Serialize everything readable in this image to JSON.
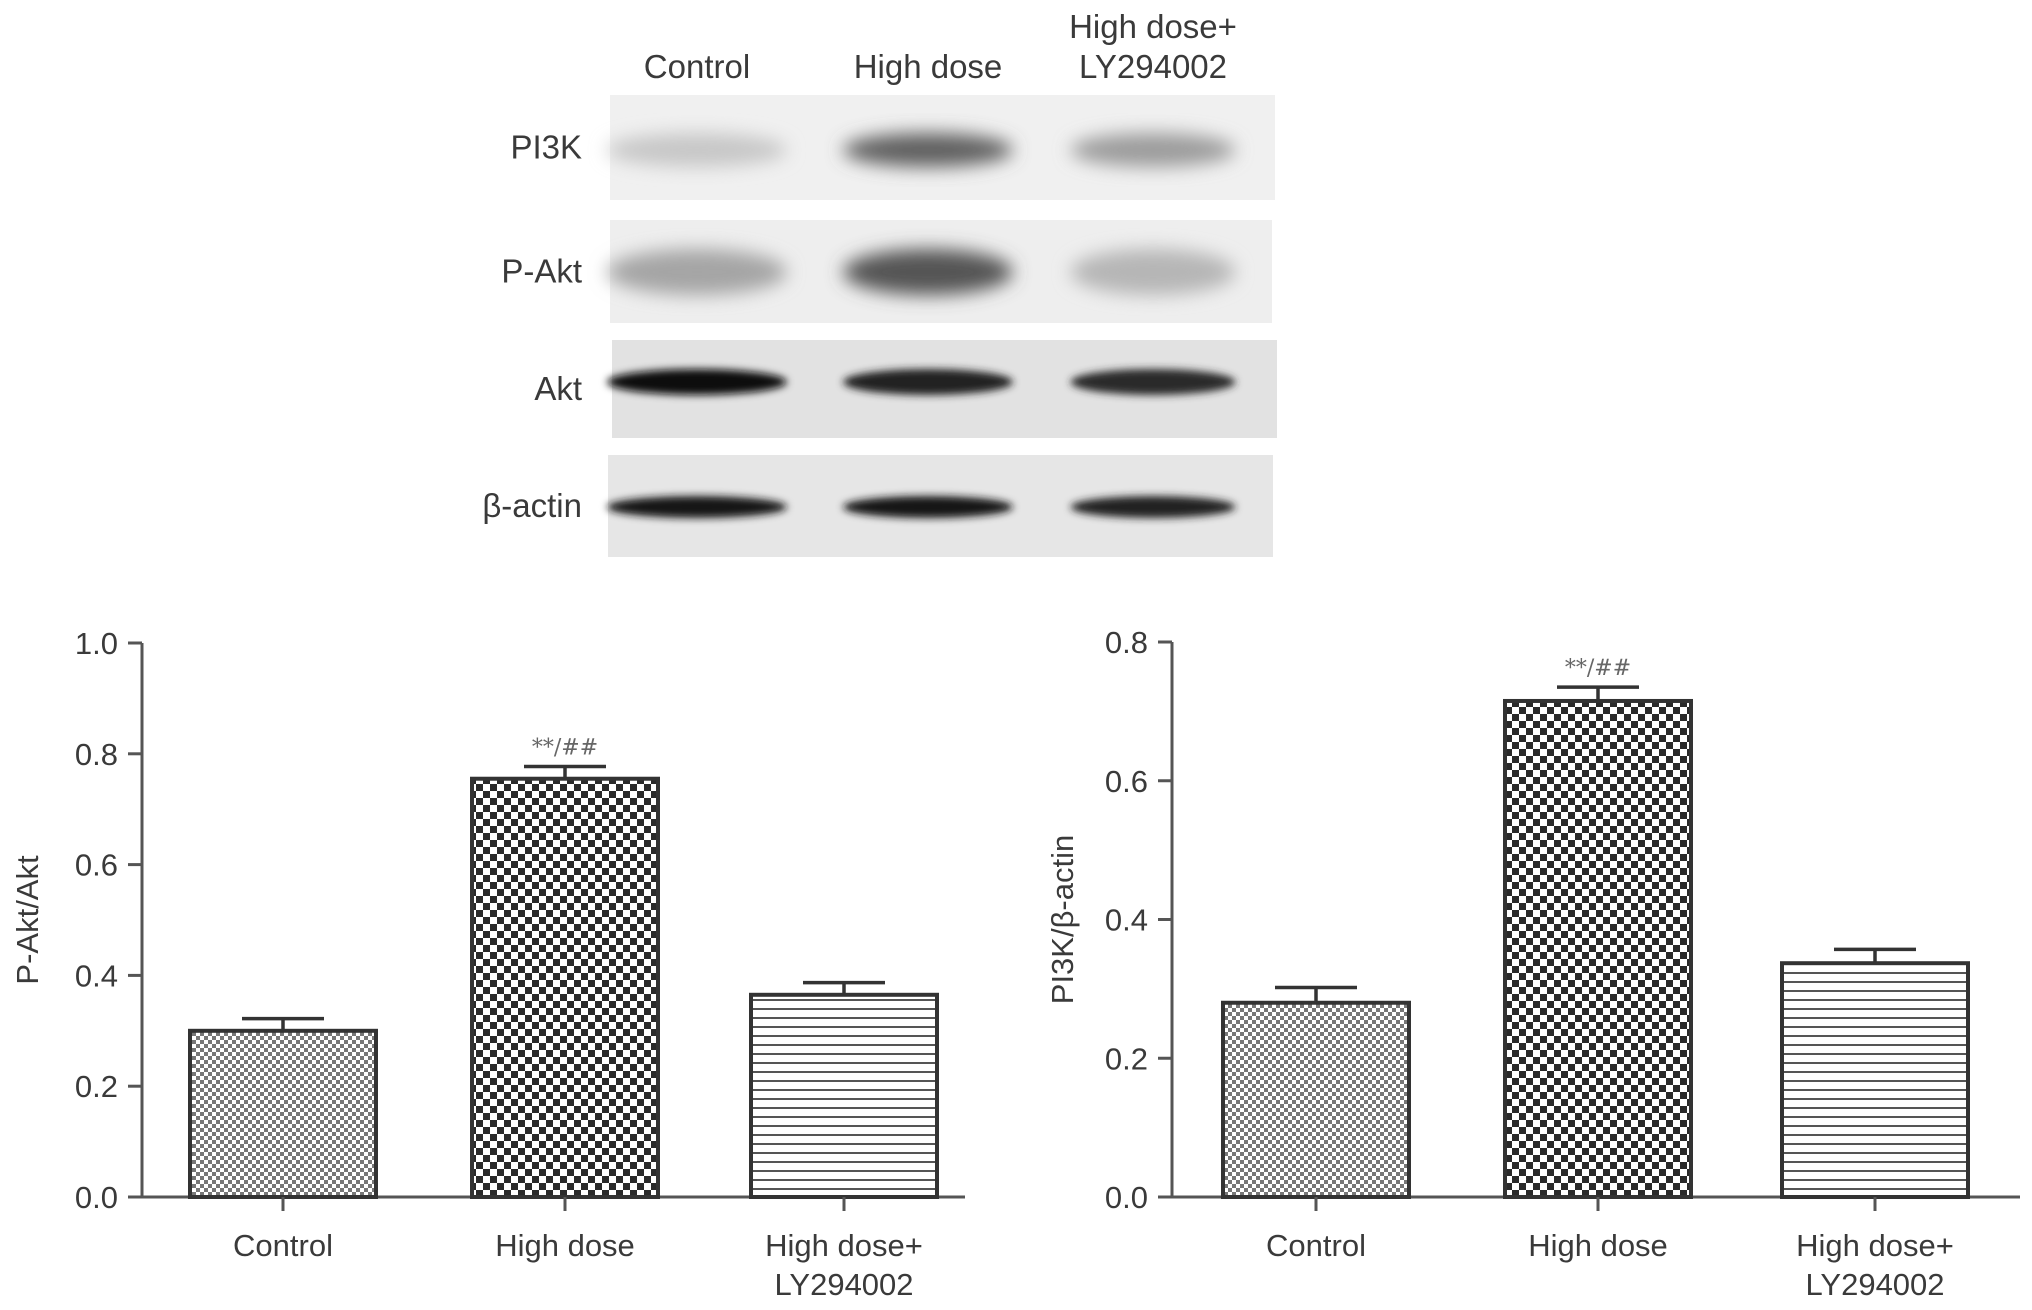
{
  "blot": {
    "lanes": [
      "Control",
      "High dose",
      "High dose+ LY294002"
    ],
    "rows": [
      {
        "label": "PI3K",
        "intensity": [
          0.12,
          0.6,
          0.32
        ]
      },
      {
        "label": "P-Akt",
        "intensity": [
          0.28,
          0.65,
          0.2
        ]
      },
      {
        "label": "Akt",
        "intensity": [
          1.0,
          0.9,
          0.85
        ]
      },
      {
        "label": "β-actin",
        "intensity": [
          0.95,
          0.95,
          0.9
        ]
      }
    ]
  },
  "colors": {
    "ink": "#3a3a3a",
    "frame": "#444444",
    "axis": "#555555"
  },
  "chart_data": [
    {
      "type": "bar",
      "ylabel": "P-Akt/Akt",
      "ylim": [
        0,
        1.0
      ],
      "yticks": [
        0.0,
        0.2,
        0.4,
        0.6,
        0.8,
        1.0
      ],
      "categories": [
        "Control",
        "High dose",
        "High dose+ LY294002"
      ],
      "values": [
        0.3,
        0.755,
        0.365
      ],
      "errors": [
        0.022,
        0.022,
        0.022
      ],
      "patterns": [
        "fine-check",
        "coarse-check",
        "horizontal-lines"
      ],
      "annotations": [
        "",
        "**/##",
        ""
      ]
    },
    {
      "type": "bar",
      "ylabel": "PI3K/β-actin",
      "ylim": [
        0,
        0.8
      ],
      "yticks": [
        0.0,
        0.2,
        0.4,
        0.6,
        0.8
      ],
      "categories": [
        "Control",
        "High dose",
        "High dose+ LY294002"
      ],
      "values": [
        0.28,
        0.715,
        0.337
      ],
      "errors": [
        0.022,
        0.02,
        0.02
      ],
      "patterns": [
        "fine-check",
        "coarse-check",
        "horizontal-lines"
      ],
      "annotations": [
        "",
        "**/##",
        ""
      ]
    }
  ]
}
